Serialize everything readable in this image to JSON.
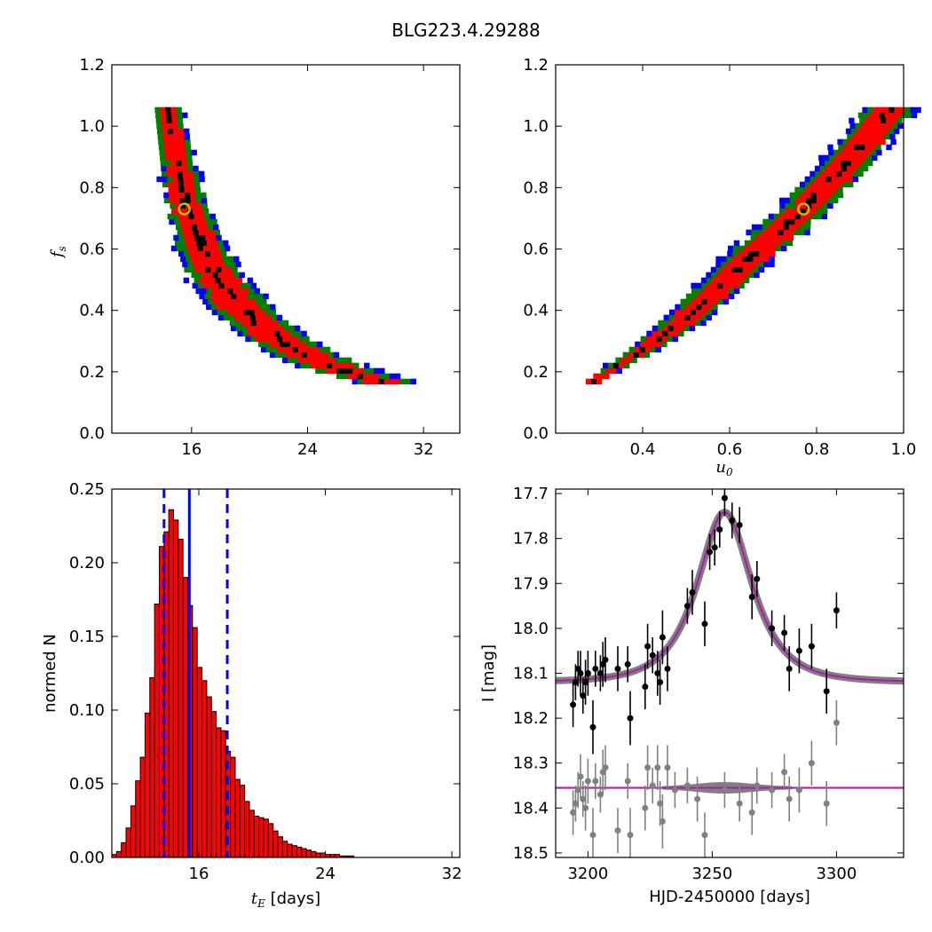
{
  "figure": {
    "title": "BLG223.4.29288"
  },
  "chart_data": [
    {
      "type": "heatmap",
      "panel": "top-left",
      "xlabel": "",
      "ylabel": "f_s",
      "xlim": [
        10.5,
        34.5
      ],
      "ylim": [
        0.0,
        1.2
      ],
      "xticks": [
        16,
        24,
        32
      ],
      "xtick_labels": [
        "16",
        "24",
        "32"
      ],
      "yticks": [
        0.0,
        0.2,
        0.4,
        0.6,
        0.8,
        1.0,
        1.2
      ],
      "ytick_labels": [
        "0.0",
        "0.2",
        "0.4",
        "0.6",
        "0.8",
        "1.0",
        "1.2"
      ],
      "confidence_colors": [
        "#0000ff",
        "#008000",
        "#ff0000",
        "#000000"
      ],
      "confidence_levels": [
        "3-sigma",
        "2-sigma",
        "1-sigma",
        "best"
      ],
      "best_fit_marker": {
        "x": 15.5,
        "y": 0.73,
        "color": "#bfbf00"
      },
      "ridge": [
        {
          "y": 1.06,
          "x_center": 14.1,
          "width": 1.8
        },
        {
          "y": 0.9,
          "x_center": 14.8,
          "width": 2.4
        },
        {
          "y": 0.73,
          "x_center": 15.5,
          "width": 3.0
        },
        {
          "y": 0.6,
          "x_center": 16.5,
          "width": 3.4
        },
        {
          "y": 0.5,
          "x_center": 17.6,
          "width": 4.0
        },
        {
          "y": 0.4,
          "x_center": 19.2,
          "width": 4.4
        },
        {
          "y": 0.32,
          "x_center": 21.2,
          "width": 4.4
        },
        {
          "y": 0.25,
          "x_center": 23.5,
          "width": 4.6
        },
        {
          "y": 0.2,
          "x_center": 26.0,
          "width": 4.6
        },
        {
          "y": 0.16,
          "x_center": 29.0,
          "width": 4.0
        }
      ]
    },
    {
      "type": "heatmap",
      "panel": "top-right",
      "xlabel": "u_0",
      "ylabel": "",
      "xlim": [
        0.2,
        1.0
      ],
      "ylim": [
        0.0,
        1.2
      ],
      "xticks": [
        0.4,
        0.6,
        0.8,
        1.0
      ],
      "xtick_labels": [
        "0.4",
        "0.6",
        "0.8",
        "1.0"
      ],
      "yticks": [
        0.0,
        0.2,
        0.4,
        0.6,
        0.8,
        1.0,
        1.2
      ],
      "ytick_labels": [
        "0.0",
        "0.2",
        "0.4",
        "0.6",
        "0.8",
        "1.0",
        "1.2"
      ],
      "confidence_colors": [
        "#0000ff",
        "#008000",
        "#ff0000",
        "#000000"
      ],
      "best_fit_marker": {
        "x": 0.77,
        "y": 0.73,
        "color": "#bfbf00"
      },
      "ridge": [
        {
          "y": 0.16,
          "x_center": 0.28,
          "width": 0.04
        },
        {
          "y": 0.25,
          "x_center": 0.38,
          "width": 0.06
        },
        {
          "y": 0.35,
          "x_center": 0.48,
          "width": 0.1
        },
        {
          "y": 0.45,
          "x_center": 0.56,
          "width": 0.11
        },
        {
          "y": 0.55,
          "x_center": 0.63,
          "width": 0.12
        },
        {
          "y": 0.65,
          "x_center": 0.71,
          "width": 0.12
        },
        {
          "y": 0.73,
          "x_center": 0.77,
          "width": 0.12
        },
        {
          "y": 0.85,
          "x_center": 0.85,
          "width": 0.12
        },
        {
          "y": 0.95,
          "x_center": 0.91,
          "width": 0.12
        },
        {
          "y": 1.06,
          "x_center": 0.97,
          "width": 0.12
        }
      ]
    },
    {
      "type": "bar",
      "panel": "bottom-left",
      "xlabel": "t_E [days]",
      "ylabel": "normed N",
      "xlim": [
        10.5,
        32.5
      ],
      "ylim": [
        0.0,
        0.25
      ],
      "xticks": [
        16,
        24,
        32
      ],
      "xtick_labels": [
        "16",
        "24",
        "32"
      ],
      "yticks": [
        0.0,
        0.05,
        0.1,
        0.15,
        0.2,
        0.25
      ],
      "ytick_labels": [
        "0.00",
        "0.05",
        "0.10",
        "0.15",
        "0.20",
        "0.25"
      ],
      "bar_color": "#ff0000",
      "bin_start": 10.5,
      "bin_width": 0.3,
      "values": [
        0.002,
        0.004,
        0.01,
        0.02,
        0.035,
        0.052,
        0.068,
        0.098,
        0.122,
        0.172,
        0.211,
        0.221,
        0.236,
        0.229,
        0.216,
        0.19,
        0.171,
        0.156,
        0.129,
        0.12,
        0.109,
        0.099,
        0.088,
        0.086,
        0.072,
        0.068,
        0.053,
        0.049,
        0.038,
        0.032,
        0.028,
        0.027,
        0.026,
        0.023,
        0.018,
        0.014,
        0.011,
        0.009,
        0.008,
        0.007,
        0.006,
        0.005,
        0.004,
        0.003,
        0.003,
        0.002,
        0.002,
        0.002,
        0.001,
        0.001,
        0.001,
        0.0,
        0.0,
        0.0,
        0.0,
        0.0,
        0.0,
        0.0,
        0.0,
        0.0,
        0.0,
        0.0,
        0.0,
        0.0,
        0.0,
        0.0,
        0.0,
        0.0,
        0.0,
        0.0,
        0.0,
        0.0,
        0.0
      ],
      "median_line": {
        "x": 15.4,
        "color": "#0000ff",
        "style": "solid"
      },
      "percentile_lines": [
        {
          "x": 13.8,
          "style": "dashed"
        },
        {
          "x": 17.8,
          "style": "dashed"
        }
      ]
    },
    {
      "type": "scatter",
      "panel": "bottom-right",
      "xlabel": "HJD-2450000 [days]",
      "ylabel": "I [mag]",
      "xlim": [
        3187,
        3327
      ],
      "ylim": [
        18.51,
        17.69
      ],
      "y_inverted": true,
      "xticks": [
        3200,
        3250,
        3300
      ],
      "xtick_labels": [
        "3200",
        "3250",
        "3300"
      ],
      "yticks": [
        17.7,
        17.8,
        17.9,
        18.0,
        18.1,
        18.2,
        18.3,
        18.4,
        18.5
      ],
      "ytick_labels": [
        "17.7",
        "17.8",
        "17.9",
        "18.0",
        "18.1",
        "18.2",
        "18.3",
        "18.4",
        "18.5"
      ],
      "model": {
        "t0": 3255.0,
        "tE": 15.5,
        "u0": 0.77,
        "fs": 0.73,
        "I_base": 18.12,
        "color": "#aa22aa",
        "band_color": "#808080"
      },
      "residual_offset": 18.355,
      "series": [
        {
          "role": "data",
          "color": "#000000",
          "points": [
            {
              "x": 3194,
              "y": 18.17,
              "err": 0.05
            },
            {
              "x": 3195,
              "y": 18.12,
              "err": 0.04
            },
            {
              "x": 3196,
              "y": 18.09,
              "err": 0.04
            },
            {
              "x": 3197,
              "y": 18.1,
              "err": 0.05
            },
            {
              "x": 3198,
              "y": 18.15,
              "err": 0.04
            },
            {
              "x": 3199,
              "y": 18.12,
              "err": 0.05
            },
            {
              "x": 3200,
              "y": 18.1,
              "err": 0.05
            },
            {
              "x": 3202,
              "y": 18.22,
              "err": 0.06
            },
            {
              "x": 3203,
              "y": 18.09,
              "err": 0.04
            },
            {
              "x": 3205,
              "y": 18.1,
              "err": 0.04
            },
            {
              "x": 3206,
              "y": 18.08,
              "err": 0.05
            },
            {
              "x": 3207,
              "y": 18.07,
              "err": 0.05
            },
            {
              "x": 3212,
              "y": 18.09,
              "err": 0.05
            },
            {
              "x": 3216,
              "y": 18.08,
              "err": 0.04
            },
            {
              "x": 3217,
              "y": 18.2,
              "err": 0.06
            },
            {
              "x": 3223,
              "y": 18.13,
              "err": 0.05
            },
            {
              "x": 3224,
              "y": 18.04,
              "err": 0.05
            },
            {
              "x": 3226,
              "y": 18.06,
              "err": 0.04
            },
            {
              "x": 3228,
              "y": 18.1,
              "err": 0.05
            },
            {
              "x": 3229,
              "y": 18.12,
              "err": 0.05
            },
            {
              "x": 3230,
              "y": 18.02,
              "err": 0.06
            },
            {
              "x": 3232,
              "y": 18.09,
              "err": 0.05
            },
            {
              "x": 3240,
              "y": 17.95,
              "err": 0.04
            },
            {
              "x": 3242,
              "y": 17.92,
              "err": 0.05
            },
            {
              "x": 3247,
              "y": 17.99,
              "err": 0.05
            },
            {
              "x": 3249,
              "y": 17.83,
              "err": 0.04
            },
            {
              "x": 3251,
              "y": 17.82,
              "err": 0.04
            },
            {
              "x": 3253,
              "y": 17.78,
              "err": 0.04
            },
            {
              "x": 3255,
              "y": 17.71,
              "err": 0.04
            },
            {
              "x": 3258,
              "y": 17.76,
              "err": 0.04
            },
            {
              "x": 3261,
              "y": 17.77,
              "err": 0.04
            },
            {
              "x": 3266,
              "y": 17.93,
              "err": 0.05
            },
            {
              "x": 3268,
              "y": 17.89,
              "err": 0.04
            },
            {
              "x": 3274,
              "y": 18.0,
              "err": 0.04
            },
            {
              "x": 3279,
              "y": 18.01,
              "err": 0.04
            },
            {
              "x": 3281,
              "y": 18.09,
              "err": 0.05
            },
            {
              "x": 3285,
              "y": 18.05,
              "err": 0.05
            },
            {
              "x": 3290,
              "y": 18.04,
              "err": 0.05
            },
            {
              "x": 3296,
              "y": 18.14,
              "err": 0.05
            },
            {
              "x": 3300,
              "y": 17.96,
              "err": 0.04
            }
          ]
        },
        {
          "role": "residuals",
          "color": "#808080",
          "points": [
            {
              "x": 3194,
              "y": 18.41,
              "err": 0.05
            },
            {
              "x": 3195,
              "y": 18.39,
              "err": 0.04
            },
            {
              "x": 3196,
              "y": 18.36,
              "err": 0.04
            },
            {
              "x": 3197,
              "y": 18.33,
              "err": 0.05
            },
            {
              "x": 3198,
              "y": 18.38,
              "err": 0.04
            },
            {
              "x": 3199,
              "y": 18.4,
              "err": 0.05
            },
            {
              "x": 3200,
              "y": 18.34,
              "err": 0.05
            },
            {
              "x": 3202,
              "y": 18.46,
              "err": 0.06
            },
            {
              "x": 3203,
              "y": 18.34,
              "err": 0.04
            },
            {
              "x": 3205,
              "y": 18.37,
              "err": 0.04
            },
            {
              "x": 3206,
              "y": 18.32,
              "err": 0.05
            },
            {
              "x": 3207,
              "y": 18.31,
              "err": 0.05
            },
            {
              "x": 3212,
              "y": 18.45,
              "err": 0.05
            },
            {
              "x": 3216,
              "y": 18.34,
              "err": 0.04
            },
            {
              "x": 3217,
              "y": 18.46,
              "err": 0.06
            },
            {
              "x": 3223,
              "y": 18.4,
              "err": 0.05
            },
            {
              "x": 3224,
              "y": 18.31,
              "err": 0.05
            },
            {
              "x": 3226,
              "y": 18.35,
              "err": 0.04
            },
            {
              "x": 3228,
              "y": 18.31,
              "err": 0.05
            },
            {
              "x": 3229,
              "y": 18.39,
              "err": 0.05
            },
            {
              "x": 3230,
              "y": 18.43,
              "err": 0.06
            },
            {
              "x": 3232,
              "y": 18.31,
              "err": 0.05
            },
            {
              "x": 3235,
              "y": 18.36,
              "err": 0.04
            },
            {
              "x": 3240,
              "y": 18.35,
              "err": 0.04
            },
            {
              "x": 3244,
              "y": 18.38,
              "err": 0.05
            },
            {
              "x": 3247,
              "y": 18.46,
              "err": 0.05
            },
            {
              "x": 3255,
              "y": 18.36,
              "err": 0.04
            },
            {
              "x": 3261,
              "y": 18.39,
              "err": 0.04
            },
            {
              "x": 3266,
              "y": 18.41,
              "err": 0.05
            },
            {
              "x": 3268,
              "y": 18.35,
              "err": 0.04
            },
            {
              "x": 3274,
              "y": 18.36,
              "err": 0.04
            },
            {
              "x": 3279,
              "y": 18.32,
              "err": 0.04
            },
            {
              "x": 3281,
              "y": 18.38,
              "err": 0.05
            },
            {
              "x": 3285,
              "y": 18.36,
              "err": 0.05
            },
            {
              "x": 3290,
              "y": 18.3,
              "err": 0.05
            },
            {
              "x": 3296,
              "y": 18.39,
              "err": 0.05
            },
            {
              "x": 3300,
              "y": 18.21,
              "err": 0.05
            }
          ]
        }
      ]
    }
  ]
}
